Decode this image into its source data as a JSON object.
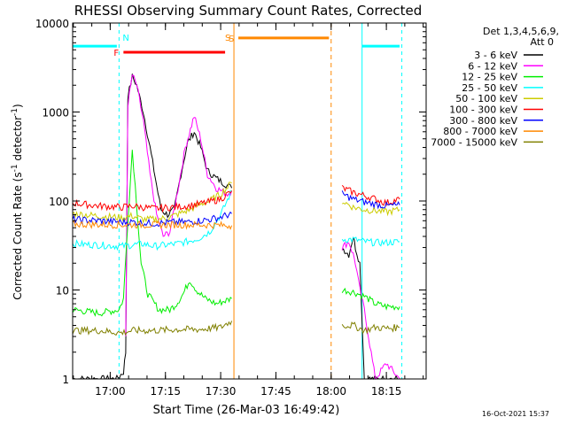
{
  "chart_data": {
    "type": "line",
    "title": "RHESSI Observing Summary Count Rates, Corrected",
    "xlabel": "Start Time (26-Mar-03 16:49:42)",
    "ylabel": "Corrected Count Rate (s",
    "ylabel_sup": "-1",
    "ylabel_tail": " detector",
    "ylabel_close": ")",
    "y_scale": "log",
    "ylim": [
      1,
      10000
    ],
    "xlim": [
      16.83,
      18.43
    ],
    "x_unit": "hours UT",
    "x_ticks": [
      {
        "value": 17.0,
        "label": "17:00"
      },
      {
        "value": 17.25,
        "label": "17:15"
      },
      {
        "value": 17.5,
        "label": "17:30"
      },
      {
        "value": 17.75,
        "label": "17:45"
      },
      {
        "value": 18.0,
        "label": "18:00"
      },
      {
        "value": 18.25,
        "label": "18:15"
      }
    ],
    "y_ticks": [
      {
        "value": 1,
        "label": "1"
      },
      {
        "value": 10,
        "label": "10"
      },
      {
        "value": 100,
        "label": "100"
      },
      {
        "value": 1000,
        "label": "1000"
      },
      {
        "value": 10000,
        "label": "10000"
      }
    ],
    "legend": {
      "placement": "right",
      "header": "Det 1,3,4,5,6,9,",
      "header2": "Att 0"
    },
    "footer": "16-Oct-2021 15:37",
    "series": [
      {
        "name": "3 - 6 keV",
        "color": "#000000",
        "segments": [
          [
            [
              16.83,
              1
            ],
            [
              17.03,
              1
            ],
            [
              17.06,
              1.2
            ],
            [
              17.07,
              2
            ],
            [
              17.08,
              1500
            ],
            [
              17.1,
              2500
            ],
            [
              17.12,
              2000
            ],
            [
              17.15,
              1000
            ],
            [
              17.18,
              400
            ],
            [
              17.21,
              150
            ],
            [
              17.23,
              80
            ],
            [
              17.26,
              70
            ],
            [
              17.29,
              80
            ],
            [
              17.32,
              200
            ],
            [
              17.35,
              450
            ],
            [
              17.38,
              600
            ],
            [
              17.41,
              400
            ],
            [
              17.44,
              220
            ],
            [
              17.48,
              180
            ],
            [
              17.53,
              150
            ],
            [
              17.55,
              140
            ]
          ],
          [
            [
              18.05,
              30
            ],
            [
              18.08,
              25
            ],
            [
              18.1,
              40
            ],
            [
              18.11,
              30
            ],
            [
              18.13,
              20
            ],
            [
              18.15,
              1
            ],
            [
              18.3,
              1
            ]
          ]
        ]
      },
      {
        "name": "6 - 12 keV",
        "color": "#ff00ff",
        "segments": [
          [
            [
              17.07,
              3
            ],
            [
              17.08,
              1200
            ],
            [
              17.1,
              2600
            ],
            [
              17.12,
              2000
            ],
            [
              17.15,
              800
            ],
            [
              17.18,
              200
            ],
            [
              17.21,
              70
            ],
            [
              17.24,
              40
            ],
            [
              17.27,
              45
            ],
            [
              17.3,
              110
            ],
            [
              17.34,
              400
            ],
            [
              17.38,
              900
            ],
            [
              17.41,
              500
            ],
            [
              17.44,
              200
            ],
            [
              17.48,
              140
            ],
            [
              17.53,
              120
            ],
            [
              17.55,
              130
            ]
          ],
          [
            [
              18.05,
              30
            ],
            [
              18.08,
              35
            ],
            [
              18.1,
              25
            ],
            [
              18.11,
              20
            ],
            [
              18.13,
              10
            ],
            [
              18.15,
              6
            ],
            [
              18.2,
              1
            ],
            [
              18.25,
              1.5
            ],
            [
              18.31,
              1
            ]
          ]
        ]
      },
      {
        "name": "12 - 25 keV",
        "color": "#00ee00",
        "segments": [
          [
            [
              16.83,
              6
            ],
            [
              16.95,
              5.5
            ],
            [
              17.04,
              6
            ],
            [
              17.06,
              8
            ],
            [
              17.08,
              60
            ],
            [
              17.1,
              380
            ],
            [
              17.12,
              90
            ],
            [
              17.14,
              20
            ],
            [
              17.17,
              9
            ],
            [
              17.22,
              6
            ],
            [
              17.27,
              6
            ],
            [
              17.3,
              7
            ],
            [
              17.33,
              9
            ],
            [
              17.36,
              13
            ],
            [
              17.39,
              10
            ],
            [
              17.43,
              8
            ],
            [
              17.48,
              7
            ],
            [
              17.55,
              8
            ]
          ],
          [
            [
              18.05,
              10
            ],
            [
              18.1,
              9.5
            ],
            [
              18.15,
              8.5
            ],
            [
              18.2,
              7
            ],
            [
              18.25,
              6.5
            ],
            [
              18.31,
              6.5
            ]
          ]
        ]
      },
      {
        "name": "25 - 50 keV",
        "color": "#00ffff",
        "segments": [
          [
            [
              16.83,
              33
            ],
            [
              16.95,
              32
            ],
            [
              17.05,
              31
            ],
            [
              17.1,
              32
            ],
            [
              17.15,
              33
            ],
            [
              17.2,
              31
            ],
            [
              17.25,
              32
            ],
            [
              17.3,
              33
            ],
            [
              17.35,
              35
            ],
            [
              17.4,
              38
            ],
            [
              17.45,
              45
            ],
            [
              17.5,
              70
            ],
            [
              17.55,
              130
            ]
          ],
          [
            [
              18.05,
              37
            ],
            [
              18.1,
              37
            ],
            [
              18.15,
              35
            ],
            [
              18.2,
              34
            ],
            [
              18.25,
              34
            ],
            [
              18.31,
              35
            ]
          ]
        ]
      },
      {
        "name": "50 - 100 keV",
        "color": "#cccc00",
        "segments": [
          [
            [
              16.83,
              72
            ],
            [
              16.95,
              68
            ],
            [
              17.05,
              65
            ],
            [
              17.1,
              68
            ],
            [
              17.15,
              62
            ],
            [
              17.2,
              62
            ],
            [
              17.25,
              64
            ],
            [
              17.3,
              70
            ],
            [
              17.35,
              78
            ],
            [
              17.4,
              90
            ],
            [
              17.45,
              100
            ],
            [
              17.5,
              120
            ],
            [
              17.55,
              160
            ]
          ],
          [
            [
              18.05,
              100
            ],
            [
              18.1,
              85
            ],
            [
              18.15,
              80
            ],
            [
              18.2,
              78
            ],
            [
              18.25,
              75
            ],
            [
              18.31,
              80
            ]
          ]
        ]
      },
      {
        "name": "100 - 300 keV",
        "color": "#ff0000",
        "segments": [
          [
            [
              16.83,
              95
            ],
            [
              16.95,
              88
            ],
            [
              17.05,
              85
            ],
            [
              17.1,
              88
            ],
            [
              17.15,
              85
            ],
            [
              17.2,
              82
            ],
            [
              17.25,
              84
            ],
            [
              17.3,
              86
            ],
            [
              17.35,
              88
            ],
            [
              17.4,
              92
            ],
            [
              17.45,
              98
            ],
            [
              17.5,
              105
            ],
            [
              17.55,
              130
            ]
          ],
          [
            [
              18.05,
              140
            ],
            [
              18.1,
              125
            ],
            [
              18.15,
              115
            ],
            [
              18.2,
              105
            ],
            [
              18.25,
              95
            ],
            [
              18.31,
              105
            ]
          ]
        ]
      },
      {
        "name": "300 - 800 keV",
        "color": "#0000ff",
        "segments": [
          [
            [
              16.83,
              62
            ],
            [
              16.95,
              60
            ],
            [
              17.05,
              58
            ],
            [
              17.1,
              58
            ],
            [
              17.15,
              57
            ],
            [
              17.2,
              56
            ],
            [
              17.25,
              57
            ],
            [
              17.3,
              58
            ],
            [
              17.35,
              58
            ],
            [
              17.4,
              60
            ],
            [
              17.45,
              62
            ],
            [
              17.5,
              66
            ],
            [
              17.55,
              72
            ]
          ],
          [
            [
              18.05,
              120
            ],
            [
              18.1,
              105
            ],
            [
              18.15,
              97
            ],
            [
              18.2,
              92
            ],
            [
              18.25,
              88
            ],
            [
              18.31,
              90
            ]
          ]
        ]
      },
      {
        "name": "800 - 7000 keV",
        "color": "#ff8800",
        "segments": [
          [
            [
              16.83,
              55
            ],
            [
              17.0,
              54
            ],
            [
              17.2,
              54
            ],
            [
              17.4,
              54
            ],
            [
              17.55,
              53
            ]
          ]
        ]
      },
      {
        "name": "7000 - 15000 keV",
        "color": "#808000",
        "segments": [
          [
            [
              16.83,
              3.5
            ],
            [
              16.95,
              3.5
            ],
            [
              17.05,
              3.3
            ],
            [
              17.1,
              3.5
            ],
            [
              17.2,
              3.5
            ],
            [
              17.3,
              3.6
            ],
            [
              17.4,
              3.6
            ],
            [
              17.5,
              3.8
            ],
            [
              17.55,
              4.5
            ]
          ],
          [
            [
              18.05,
              4
            ],
            [
              18.1,
              4
            ],
            [
              18.15,
              3.5
            ],
            [
              18.2,
              3.8
            ],
            [
              18.25,
              3.7
            ],
            [
              18.31,
              3.8
            ]
          ]
        ]
      }
    ],
    "annotations": [
      {
        "label": "N",
        "kind": "night-start",
        "x": 17.04,
        "color": "#00ffff"
      },
      {
        "label": "",
        "kind": "night-end",
        "x": 16.83,
        "color": "#00ffff"
      },
      {
        "label": "",
        "kind": "night-end",
        "x": 18.14,
        "color": "#00ffff"
      },
      {
        "label": "",
        "kind": "night-start",
        "x": 18.32,
        "color": "#00ffff"
      },
      {
        "label": "S",
        "kind": "saa-start",
        "x": 17.56,
        "color": "#ff8800"
      },
      {
        "label": "",
        "kind": "saa-end",
        "x": 18.0,
        "color": "#ff8800"
      }
    ],
    "bars": [
      {
        "label": "",
        "color": "#00ffff",
        "x0": 16.83,
        "x1": 17.03,
        "level": 5500
      },
      {
        "label": "",
        "color": "#00ffff",
        "x0": 18.14,
        "x1": 18.31,
        "level": 5500
      },
      {
        "label": "F",
        "color": "#ff0000",
        "x0": 17.06,
        "x1": 17.52,
        "level": 4700
      },
      {
        "label": "S",
        "color": "#ff8800",
        "x0": 17.58,
        "x1": 17.99,
        "level": 6800
      }
    ]
  }
}
